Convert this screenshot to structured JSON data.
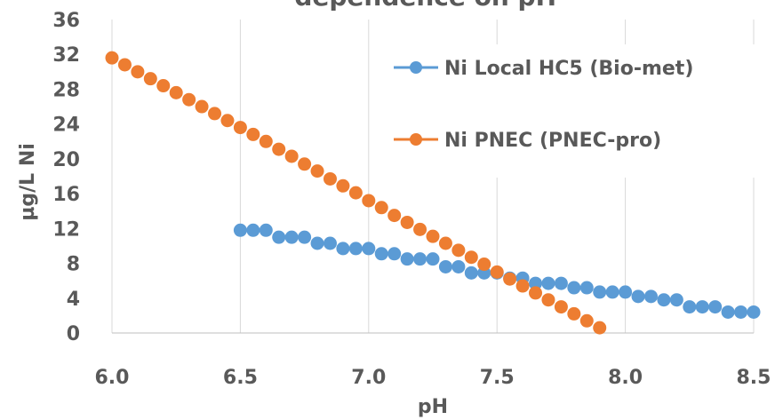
{
  "chart_data": {
    "type": "scatter",
    "title": "- dependence on pH",
    "xlabel": "pH",
    "ylabel": "µg/L Ni",
    "xlim": [
      6.0,
      8.5
    ],
    "ylim": [
      0,
      36
    ],
    "xticks": [
      "6.0",
      "6.5",
      "7.0",
      "7.5",
      "8.0",
      "8.5"
    ],
    "yticks": [
      "0",
      "4",
      "8",
      "12",
      "16",
      "20",
      "24",
      "28",
      "32",
      "36"
    ],
    "grid": "vertical",
    "legend_position": "right",
    "series": [
      {
        "name": "Ni Local HC5 (Bio-met)",
        "color": "#5B9BD5",
        "points": [
          [
            6.5,
            11.8
          ],
          [
            6.55,
            11.8
          ],
          [
            6.6,
            11.8
          ],
          [
            6.65,
            11.0
          ],
          [
            6.7,
            11.0
          ],
          [
            6.75,
            11.0
          ],
          [
            6.8,
            10.3
          ],
          [
            6.85,
            10.3
          ],
          [
            6.9,
            9.7
          ],
          [
            6.95,
            9.7
          ],
          [
            7.0,
            9.7
          ],
          [
            7.05,
            9.1
          ],
          [
            7.1,
            9.1
          ],
          [
            7.15,
            8.5
          ],
          [
            7.2,
            8.5
          ],
          [
            7.25,
            8.5
          ],
          [
            7.3,
            7.6
          ],
          [
            7.35,
            7.6
          ],
          [
            7.4,
            6.9
          ],
          [
            7.45,
            6.9
          ],
          [
            7.5,
            6.9
          ],
          [
            7.55,
            6.3
          ],
          [
            7.6,
            6.3
          ],
          [
            7.65,
            5.7
          ],
          [
            7.7,
            5.7
          ],
          [
            7.75,
            5.7
          ],
          [
            7.8,
            5.2
          ],
          [
            7.85,
            5.2
          ],
          [
            7.9,
            4.7
          ],
          [
            7.95,
            4.7
          ],
          [
            8.0,
            4.7
          ],
          [
            8.05,
            4.2
          ],
          [
            8.1,
            4.2
          ],
          [
            8.15,
            3.8
          ],
          [
            8.2,
            3.8
          ],
          [
            8.25,
            3.0
          ],
          [
            8.3,
            3.0
          ],
          [
            8.35,
            3.0
          ],
          [
            8.4,
            2.4
          ],
          [
            8.45,
            2.4
          ],
          [
            8.5,
            2.4
          ]
        ]
      },
      {
        "name": "Ni PNEC (PNEC-pro)",
        "color": "#ED7D31",
        "points": [
          [
            6.0,
            31.6
          ],
          [
            6.05,
            30.8
          ],
          [
            6.1,
            30.0
          ],
          [
            6.15,
            29.2
          ],
          [
            6.2,
            28.4
          ],
          [
            6.25,
            27.6
          ],
          [
            6.3,
            26.8
          ],
          [
            6.35,
            26.0
          ],
          [
            6.4,
            25.2
          ],
          [
            6.45,
            24.4
          ],
          [
            6.5,
            23.6
          ],
          [
            6.55,
            22.8
          ],
          [
            6.6,
            22.0
          ],
          [
            6.65,
            21.1
          ],
          [
            6.7,
            20.3
          ],
          [
            6.75,
            19.4
          ],
          [
            6.8,
            18.6
          ],
          [
            6.85,
            17.7
          ],
          [
            6.9,
            16.9
          ],
          [
            6.95,
            16.1
          ],
          [
            7.0,
            15.2
          ],
          [
            7.05,
            14.4
          ],
          [
            7.1,
            13.5
          ],
          [
            7.15,
            12.7
          ],
          [
            7.2,
            11.9
          ],
          [
            7.25,
            11.1
          ],
          [
            7.3,
            10.3
          ],
          [
            7.35,
            9.5
          ],
          [
            7.4,
            8.7
          ],
          [
            7.45,
            7.9
          ],
          [
            7.5,
            7.0
          ],
          [
            7.55,
            6.2
          ],
          [
            7.6,
            5.4
          ],
          [
            7.65,
            4.6
          ],
          [
            7.7,
            3.8
          ],
          [
            7.75,
            3.0
          ],
          [
            7.8,
            2.2
          ],
          [
            7.85,
            1.4
          ],
          [
            7.9,
            0.6
          ]
        ]
      }
    ]
  }
}
